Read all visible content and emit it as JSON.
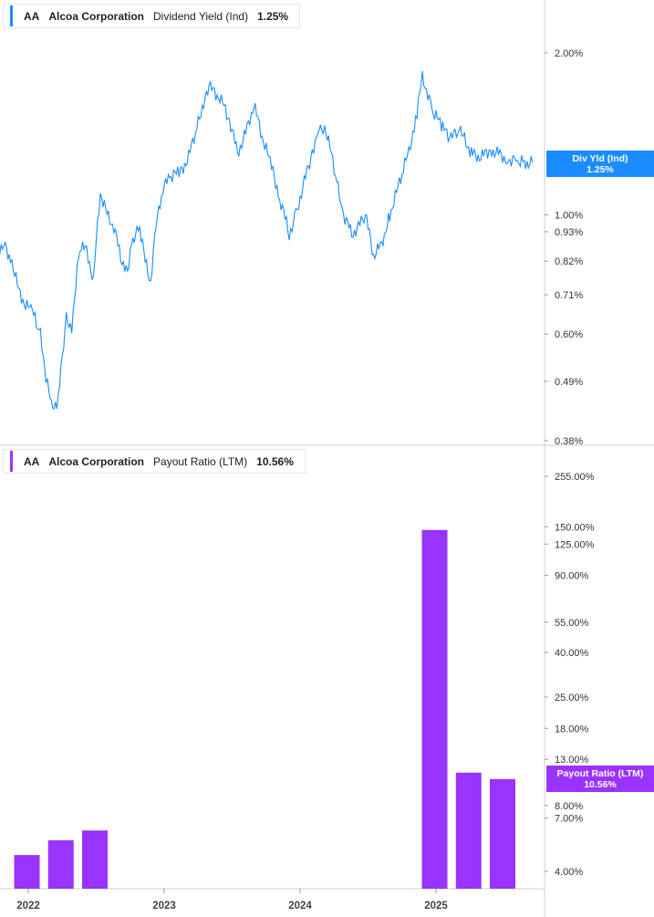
{
  "panels": {
    "top": {
      "ticker": "AA",
      "company": "Alcoa Corporation",
      "metric": "Dividend Yield (Ind)",
      "value": "1.25%",
      "tag_label": "Div Yld (Ind)",
      "tag_value": "1.25%",
      "color": "#1a8cff"
    },
    "bottom": {
      "ticker": "AA",
      "company": "Alcoa Corporation",
      "metric": "Payout Ratio (LTM)",
      "value": "10.56%",
      "tag_label": "Payout Ratio (LTM)",
      "tag_value": "10.56%",
      "color": "#9933ff"
    }
  },
  "chart_data": [
    {
      "type": "line",
      "scale": "log",
      "ylim": [
        0.38,
        2.2
      ],
      "y_ticks": [
        "2.00%",
        "1.00%",
        "0.93%",
        "0.82%",
        "0.71%",
        "0.60%",
        "0.49%",
        "0.38%"
      ],
      "y_tick_values": [
        2.0,
        1.0,
        0.93,
        0.82,
        0.71,
        0.6,
        0.49,
        0.38
      ],
      "x": [
        2021.75,
        2021.82,
        2021.88,
        2021.93,
        2021.98,
        2022.03,
        2022.09,
        2022.13,
        2022.17,
        2022.22,
        2022.28,
        2022.32,
        2022.38,
        2022.43,
        2022.48,
        2022.53,
        2022.58,
        2022.63,
        2022.68,
        2022.73,
        2022.77,
        2022.82,
        2022.86,
        2022.9,
        2022.94,
        2022.99,
        2023.05,
        2023.12,
        2023.18,
        2023.24,
        2023.29,
        2023.34,
        2023.41,
        2023.48,
        2023.54,
        2023.6,
        2023.66,
        2023.72,
        2023.78,
        2023.82,
        2023.86,
        2023.92,
        2023.97,
        2024.03,
        2024.09,
        2024.14,
        2024.2,
        2024.27,
        2024.32,
        2024.38,
        2024.43,
        2024.48,
        2024.54,
        2024.6,
        2024.66,
        2024.71,
        2024.76,
        2024.8,
        2024.86,
        2024.9,
        2024.94,
        2024.98,
        2025.05,
        2025.11,
        2025.16,
        2025.2,
        2025.26,
        2025.33,
        2025.4,
        2025.46,
        2025.52,
        2025.6,
        2025.66,
        2025.71
      ],
      "series": [
        {
          "values": [
            0.8,
            0.88,
            0.82,
            0.72,
            0.68,
            0.66,
            0.6,
            0.5,
            0.44,
            0.45,
            0.64,
            0.62,
            0.87,
            0.86,
            0.75,
            1.1,
            1.0,
            0.95,
            0.83,
            0.79,
            0.9,
            0.95,
            0.82,
            0.75,
            0.95,
            1.12,
            1.18,
            1.2,
            1.28,
            1.45,
            1.62,
            1.72,
            1.65,
            1.5,
            1.3,
            1.42,
            1.6,
            1.4,
            1.25,
            1.15,
            1.05,
            0.92,
            1.0,
            1.15,
            1.3,
            1.48,
            1.4,
            1.15,
            1.0,
            0.92,
            0.95,
            1.0,
            0.84,
            0.88,
            1.0,
            1.1,
            1.22,
            1.3,
            1.55,
            1.8,
            1.68,
            1.55,
            1.45,
            1.38,
            1.45,
            1.4,
            1.3,
            1.28,
            1.32,
            1.3,
            1.27,
            1.26,
            1.25,
            1.25
          ]
        }
      ]
    },
    {
      "type": "bar",
      "scale": "log",
      "ylim": [
        3.6,
        300
      ],
      "y_ticks": [
        "255.00%",
        "150.00%",
        "125.00%",
        "90.00%",
        "55.00%",
        "40.00%",
        "25.00%",
        "18.00%",
        "13.00%",
        "8.00%",
        "7.00%",
        "4.00%"
      ],
      "y_tick_values": [
        255,
        150,
        125,
        90,
        55,
        40,
        25,
        18,
        13,
        8,
        7,
        4
      ],
      "x_ticks": [
        "2022",
        "2023",
        "2024",
        "2025"
      ],
      "x_tick_values": [
        2022.0,
        2023.0,
        2024.0,
        2025.0
      ],
      "x": [
        2021.99,
        2022.24,
        2022.49,
        2024.99,
        2025.24,
        2025.49
      ],
      "series": [
        {
          "values": [
            4.75,
            5.55,
            6.15,
            145.0,
            11.3,
            10.56
          ]
        }
      ]
    }
  ]
}
